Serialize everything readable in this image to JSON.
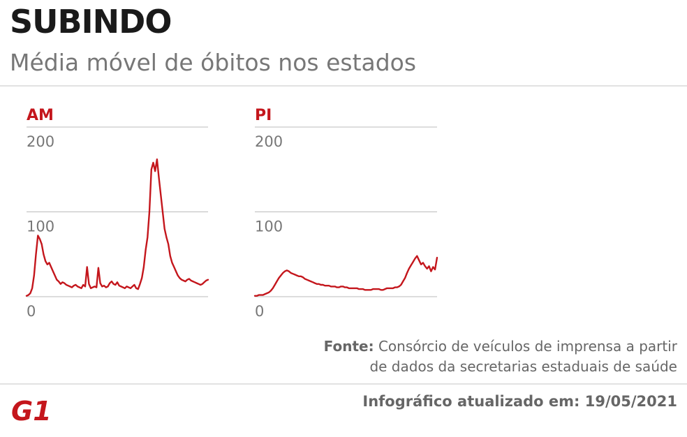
{
  "header": {
    "title": "SUBINDO",
    "subtitle": "Média móvel de óbitos nos estados"
  },
  "footer": {
    "source_label": "Fonte:",
    "source_line1": "Consórcio de veículos de imprensa a partir",
    "source_line2": "de dados da secretarias estaduais de saúde",
    "updated": "Infográfico atualizado em: 19/05/2021",
    "logo_text": "G1"
  },
  "colors": {
    "series": "#c4161c",
    "title": "#1a1a1a",
    "muted": "#777777",
    "grid": "#bbbbbb"
  },
  "chart_data": [
    {
      "type": "line",
      "title": "AM",
      "ylim": [
        0,
        200
      ],
      "yticks": [
        "200",
        "100",
        "0"
      ],
      "grid": true,
      "series": [
        {
          "values": [
            1,
            2,
            4,
            10,
            25,
            50,
            72,
            68,
            62,
            50,
            42,
            38,
            40,
            35,
            30,
            25,
            20,
            18,
            15,
            17,
            16,
            14,
            13,
            12,
            11,
            13,
            14,
            12,
            11,
            10,
            14,
            12,
            35,
            15,
            10,
            11,
            12,
            11,
            34,
            16,
            12,
            13,
            11,
            12,
            16,
            18,
            15,
            14,
            17,
            13,
            12,
            11,
            10,
            12,
            11,
            10,
            12,
            14,
            10,
            9,
            15,
            22,
            35,
            55,
            70,
            100,
            150,
            158,
            148,
            162,
            140,
            120,
            100,
            80,
            70,
            62,
            48,
            40,
            35,
            30,
            25,
            22,
            20,
            19,
            18,
            20,
            21,
            19,
            18,
            17,
            16,
            15,
            14,
            15,
            17,
            19,
            20
          ]
        }
      ]
    },
    {
      "type": "line",
      "title": "PI",
      "ylim": [
        0,
        200
      ],
      "yticks": [
        "200",
        "100",
        "0"
      ],
      "grid": true,
      "series": [
        {
          "values": [
            1,
            1,
            2,
            2,
            2,
            3,
            4,
            5,
            7,
            10,
            14,
            18,
            22,
            25,
            28,
            30,
            31,
            30,
            28,
            27,
            26,
            25,
            24,
            24,
            23,
            21,
            20,
            19,
            18,
            17,
            16,
            15,
            15,
            14,
            14,
            13,
            13,
            13,
            12,
            12,
            12,
            11,
            11,
            12,
            12,
            11,
            11,
            10,
            10,
            10,
            10,
            10,
            9,
            9,
            9,
            8,
            8,
            8,
            8,
            9,
            9,
            9,
            9,
            8,
            8,
            9,
            10,
            10,
            10,
            10,
            11,
            11,
            12,
            14,
            18,
            22,
            28,
            33,
            37,
            41,
            45,
            48,
            43,
            38,
            40,
            36,
            33,
            36,
            30,
            35,
            32,
            46
          ]
        }
      ]
    }
  ]
}
